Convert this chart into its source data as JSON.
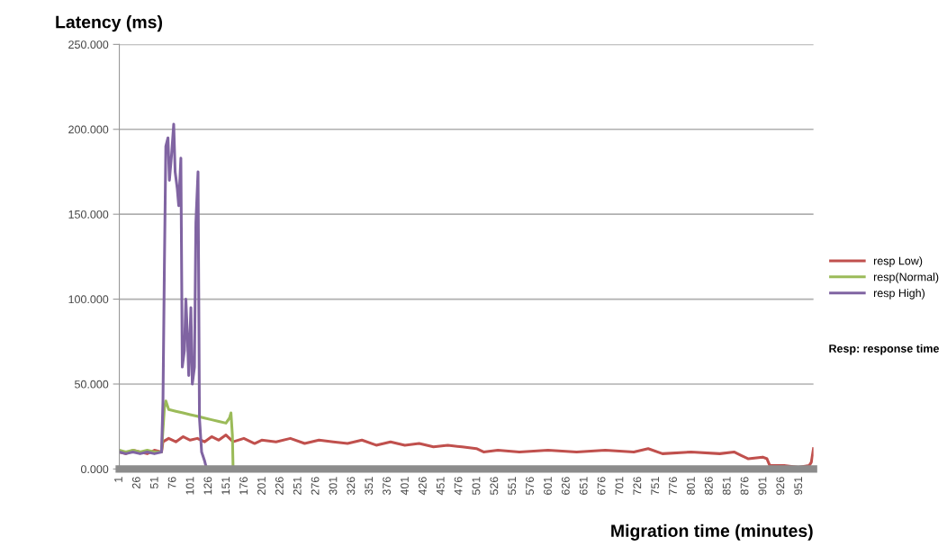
{
  "chart_data": {
    "type": "line",
    "xlabel": "Migration time (minutes)",
    "ylabel": "Latency (ms)",
    "xlim": [
      1,
      971
    ],
    "xticks": [
      1,
      26,
      51,
      76,
      101,
      126,
      151,
      176,
      201,
      226,
      251,
      276,
      301,
      326,
      351,
      376,
      401,
      426,
      451,
      476,
      501,
      526,
      551,
      576,
      601,
      626,
      651,
      676,
      701,
      726,
      751,
      776,
      801,
      826,
      851,
      876,
      901,
      926,
      951
    ],
    "ylim": [
      0,
      250
    ],
    "yticks": [
      {
        "value": 0,
        "label": "0.000"
      },
      {
        "value": 50,
        "label": "50.000"
      },
      {
        "value": 100,
        "label": "100.000"
      },
      {
        "value": 150,
        "label": "150.000"
      },
      {
        "value": 200,
        "label": "200.000"
      },
      {
        "value": 250,
        "label": "250.000"
      }
    ],
    "grid": "y",
    "legend": "right",
    "line_style": "solid",
    "marker": "none",
    "annotations": [
      "Resp: response time"
    ],
    "series": [
      {
        "name": "resp Low)",
        "color": "#c0504d",
        "x": [
          1,
          10,
          20,
          30,
          40,
          50,
          60,
          62,
          70,
          80,
          90,
          100,
          110,
          120,
          130,
          140,
          150,
          160,
          175,
          190,
          200,
          220,
          240,
          260,
          280,
          300,
          320,
          340,
          360,
          380,
          400,
          420,
          440,
          460,
          480,
          500,
          510,
          530,
          560,
          600,
          640,
          680,
          720,
          740,
          760,
          800,
          840,
          860,
          870,
          880,
          900,
          906,
          910,
          930,
          950,
          965,
          968,
          971
        ],
        "values": [
          10,
          9,
          11,
          10,
          9,
          11,
          10,
          16,
          18,
          16,
          19,
          17,
          18,
          16,
          19,
          17,
          20,
          16,
          18,
          15,
          17,
          16,
          18,
          15,
          17,
          16,
          15,
          17,
          14,
          16,
          14,
          15,
          13,
          14,
          13,
          12,
          10,
          11,
          10,
          11,
          10,
          11,
          10,
          12,
          9,
          10,
          9,
          10,
          8,
          6,
          7,
          6,
          2,
          2,
          1,
          2,
          4,
          12
        ]
      },
      {
        "name": "resp(Normal)",
        "color": "#9bbb59",
        "x": [
          1,
          10,
          20,
          30,
          40,
          50,
          60,
          64,
          66,
          70,
          80,
          90,
          100,
          110,
          120,
          130,
          140,
          150,
          155,
          157,
          159,
          160
        ],
        "values": [
          11,
          10,
          11,
          10,
          11,
          10,
          10,
          36,
          40,
          35,
          34,
          33,
          32,
          31,
          30,
          29,
          28,
          27,
          30,
          33,
          20,
          0
        ]
      },
      {
        "name": "resp High)",
        "color": "#8064a2",
        "x": [
          1,
          10,
          20,
          30,
          40,
          50,
          60,
          62,
          64,
          66,
          69,
          71,
          74,
          77,
          79,
          82,
          84,
          87,
          89,
          92,
          94,
          96,
          98,
          101,
          103,
          106,
          108,
          111,
          113,
          116,
          120,
          123
        ],
        "values": [
          10,
          9,
          10,
          9,
          10,
          9,
          10,
          40,
          120,
          190,
          195,
          170,
          185,
          203,
          175,
          165,
          155,
          183,
          60,
          70,
          100,
          80,
          55,
          95,
          50,
          60,
          145,
          175,
          30,
          10,
          5,
          0
        ]
      }
    ]
  }
}
